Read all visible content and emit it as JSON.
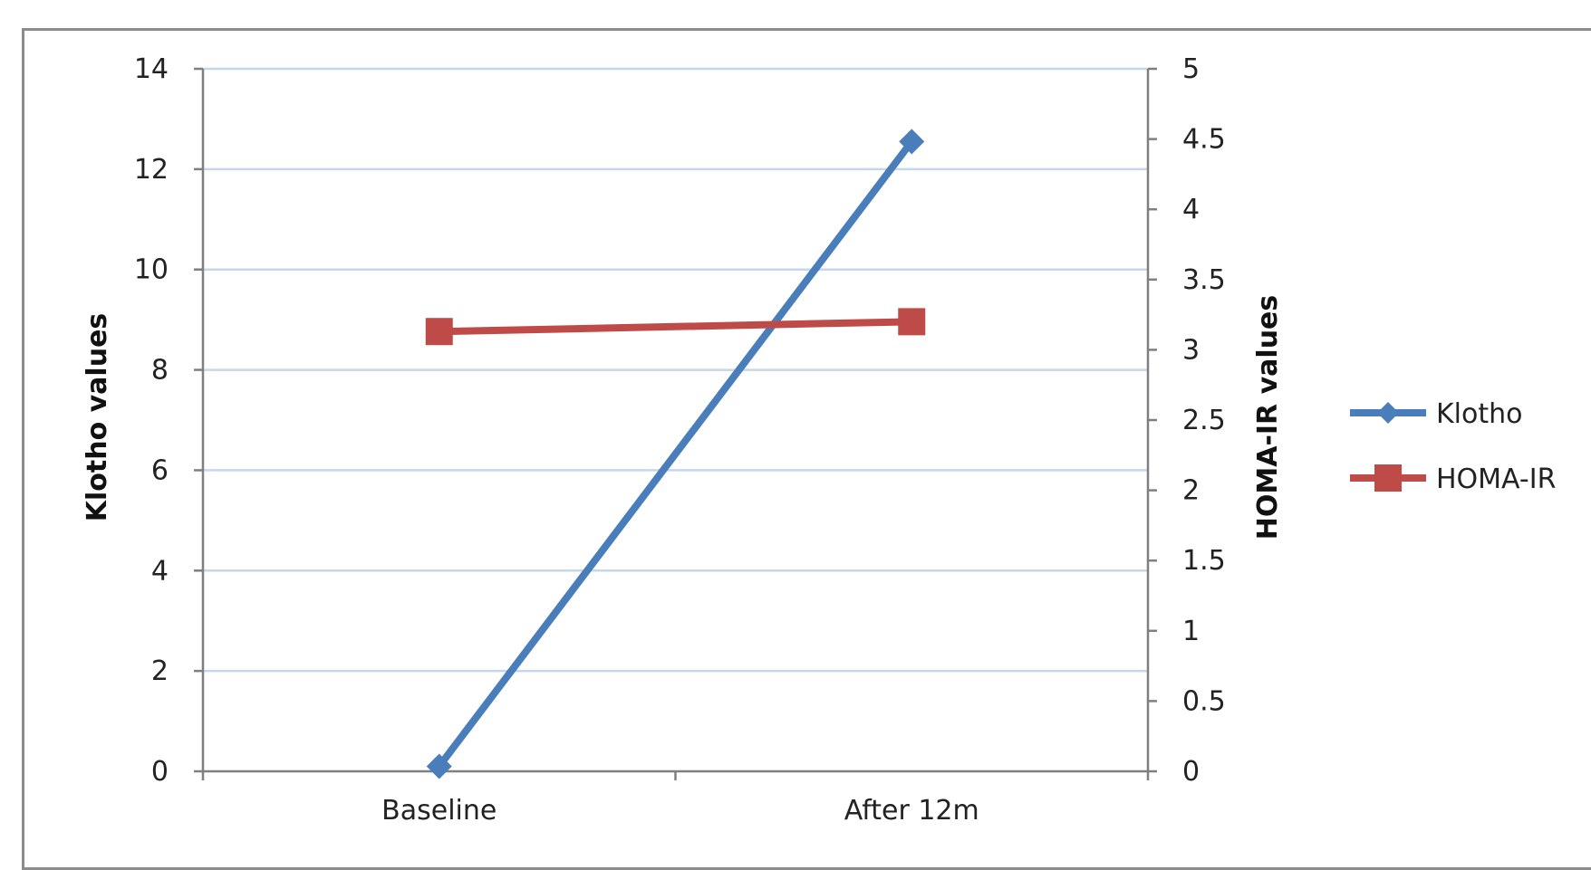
{
  "chart_data": {
    "type": "line",
    "categories": [
      "Baseline",
      "After 12m"
    ],
    "series": [
      {
        "name": "Klotho",
        "axis": "left",
        "values": [
          0.1,
          12.55
        ],
        "color": "#4a7ebb",
        "marker": "diamond"
      },
      {
        "name": "HOMA-IR",
        "axis": "right",
        "values": [
          3.13,
          3.2
        ],
        "color": "#be4b48",
        "marker": "square"
      }
    ],
    "ylabel": "Klotho values",
    "y2label": "HOMA-IR values",
    "ylim": [
      0,
      14
    ],
    "y2lim": [
      0,
      5
    ],
    "yticks": [
      "0",
      "2",
      "4",
      "6",
      "8",
      "10",
      "12",
      "14"
    ],
    "y2ticks": [
      "0",
      "0.5",
      "1",
      "1.5",
      "2",
      "2.5",
      "3",
      "3.5",
      "4",
      "4.5",
      "5"
    ],
    "grid": true,
    "gridColor": "#c5d7ea",
    "legend": "right"
  }
}
